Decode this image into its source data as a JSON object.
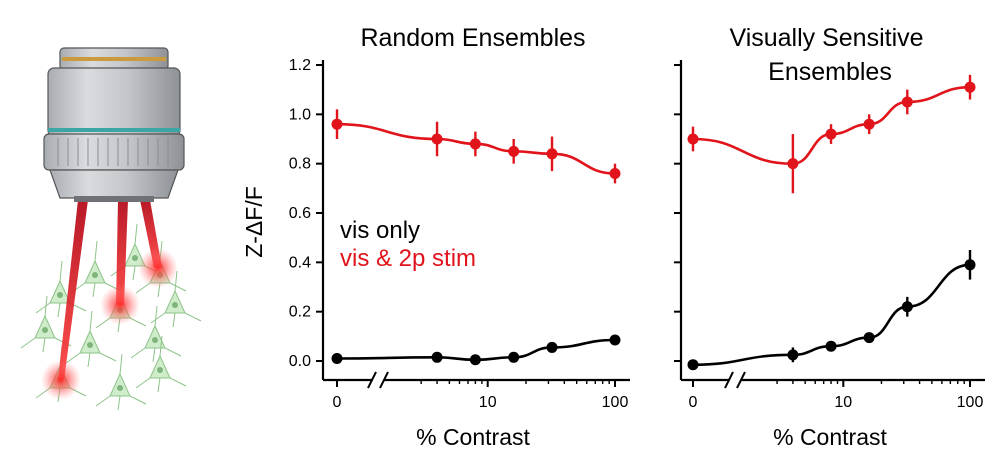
{
  "chart_data": [
    {
      "type": "line",
      "title": "Random Ensembles",
      "xlabel": "% Contrast",
      "ylabel": "Z-ΔF/F",
      "xscale": "log with axis break after 0",
      "ylim": [
        -0.08,
        1.24
      ],
      "yticks": [
        "0.0",
        "0.2",
        "0.4",
        "0.6",
        "0.8",
        "1.0",
        "1.2"
      ],
      "xticks": [
        "0",
        "10",
        "100"
      ],
      "legend": [
        "vis only",
        "vis & 2p stim"
      ],
      "legend_position": "center-left",
      "series": [
        {
          "name": "vis & 2p stim",
          "color": "#e0141a",
          "x": [
            0,
            4,
            8,
            16,
            32,
            100
          ],
          "y": [
            0.96,
            0.9,
            0.88,
            0.85,
            0.84,
            0.76
          ],
          "err": [
            0.06,
            0.07,
            0.05,
            0.05,
            0.07,
            0.04
          ]
        },
        {
          "name": "vis only",
          "color": "#000000",
          "x": [
            0,
            4,
            8,
            16,
            32,
            100
          ],
          "y": [
            0.01,
            0.015,
            0.005,
            0.015,
            0.055,
            0.085
          ],
          "err": [
            0.008,
            0.008,
            0.008,
            0.008,
            0.012,
            0.01
          ]
        }
      ]
    },
    {
      "type": "line",
      "title": "Visually Sensitive\nEnsembles",
      "xlabel": "% Contrast",
      "ylabel": "",
      "xscale": "log with axis break after 0",
      "ylim": [
        -0.08,
        1.24
      ],
      "yticks": [
        "",
        "",
        "",
        "",
        "",
        "",
        ""
      ],
      "xticks": [
        "0",
        "10",
        "100"
      ],
      "series": [
        {
          "name": "vis & 2p stim",
          "color": "#e0141a",
          "x": [
            0,
            4,
            8,
            16,
            32,
            100
          ],
          "y": [
            0.9,
            0.8,
            0.92,
            0.96,
            1.05,
            1.11
          ],
          "err": [
            0.05,
            0.12,
            0.04,
            0.04,
            0.05,
            0.05
          ]
        },
        {
          "name": "vis only",
          "color": "#000000",
          "x": [
            0,
            4,
            8,
            16,
            32,
            100
          ],
          "y": [
            -0.015,
            0.025,
            0.06,
            0.095,
            0.22,
            0.39
          ],
          "err": [
            0.008,
            0.03,
            0.012,
            0.015,
            0.04,
            0.06
          ]
        }
      ]
    }
  ],
  "illustration": {
    "description_icon": "microscope-objective-with-neurons-icon"
  }
}
